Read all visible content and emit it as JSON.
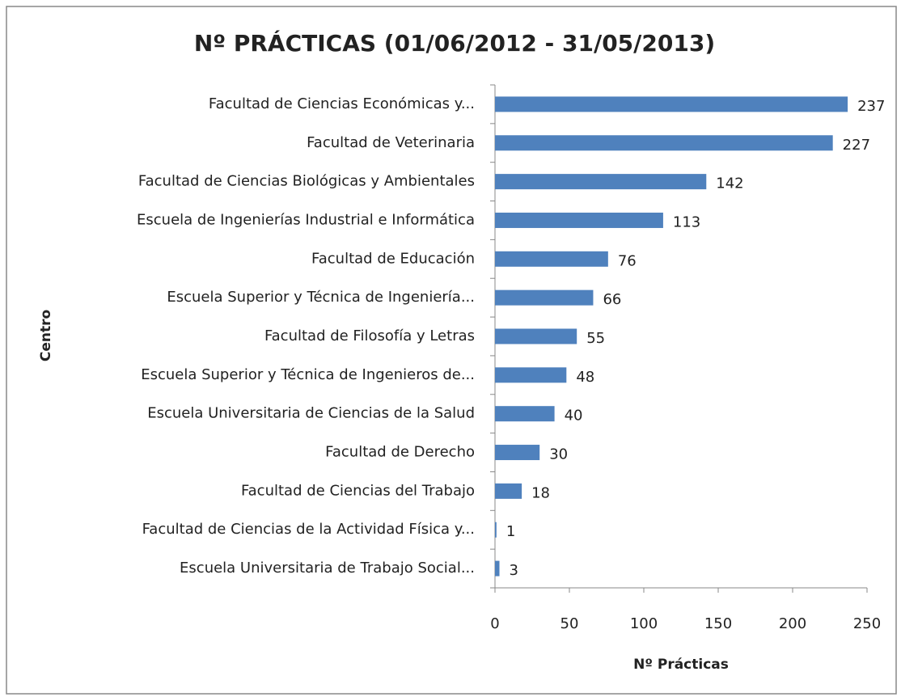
{
  "chart_data": {
    "type": "bar",
    "orientation": "horizontal",
    "title": "Nº PRÁCTICAS (01/06/2012 - 31/05/2013)",
    "x_label": "Nº Prácticas",
    "y_label": "Centro",
    "categories": [
      "Facultad de Ciencias Económicas y...",
      "Facultad de Veterinaria",
      "Facultad de Ciencias Biológicas y Ambientales",
      "Escuela de Ingenierías Industrial e Informática",
      "Facultad de Educación",
      "Escuela Superior y Técnica de Ingeniería...",
      "Facultad de Filosofía y Letras",
      "Escuela Superior y Técnica de Ingenieros de...",
      "Escuela Universitaria de Ciencias de la Salud",
      "Facultad de Derecho",
      "Facultad de Ciencias del Trabajo",
      "Facultad de Ciencias de la Actividad Física y...",
      "Escuela Universitaria de Trabajo Social..."
    ],
    "values": [
      237,
      227,
      142,
      113,
      76,
      66,
      55,
      48,
      40,
      30,
      18,
      1,
      3
    ],
    "color": "#4f81bd",
    "xlim": [
      0,
      250
    ],
    "xticks": [
      0,
      50,
      100,
      150,
      200,
      250
    ],
    "grid": false
  }
}
